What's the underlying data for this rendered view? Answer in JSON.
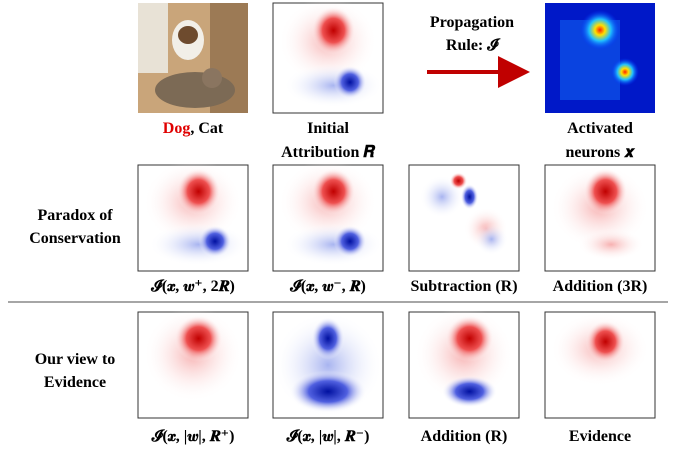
{
  "header_row": {
    "image_label": {
      "dog": "Dog",
      "rest": ", Cat"
    },
    "initial_attribution": [
      "Initial",
      "Attribution 𝑹"
    ],
    "propagation_rule": [
      "Propagation",
      "Rule: 𝓘"
    ],
    "activated_neurons": [
      "Activated",
      "neurons 𝒙"
    ]
  },
  "rows": [
    {
      "label": [
        "Paradox of",
        "Conservation"
      ],
      "captions": [
        "𝓘(𝒙, 𝒘⁺, 2𝑹)",
        "𝓘(𝒙, 𝒘⁻, 𝑹)",
        "Subtraction (R)",
        "Addition (3R)"
      ]
    },
    {
      "label": [
        "Our view to",
        "Evidence"
      ],
      "captions": [
        "𝓘(𝒙, |𝒘|, 𝑹⁺)",
        "𝓘(𝒙, |𝒘|, 𝑹⁻)",
        "Addition (R)",
        "Evidence"
      ]
    }
  ]
}
